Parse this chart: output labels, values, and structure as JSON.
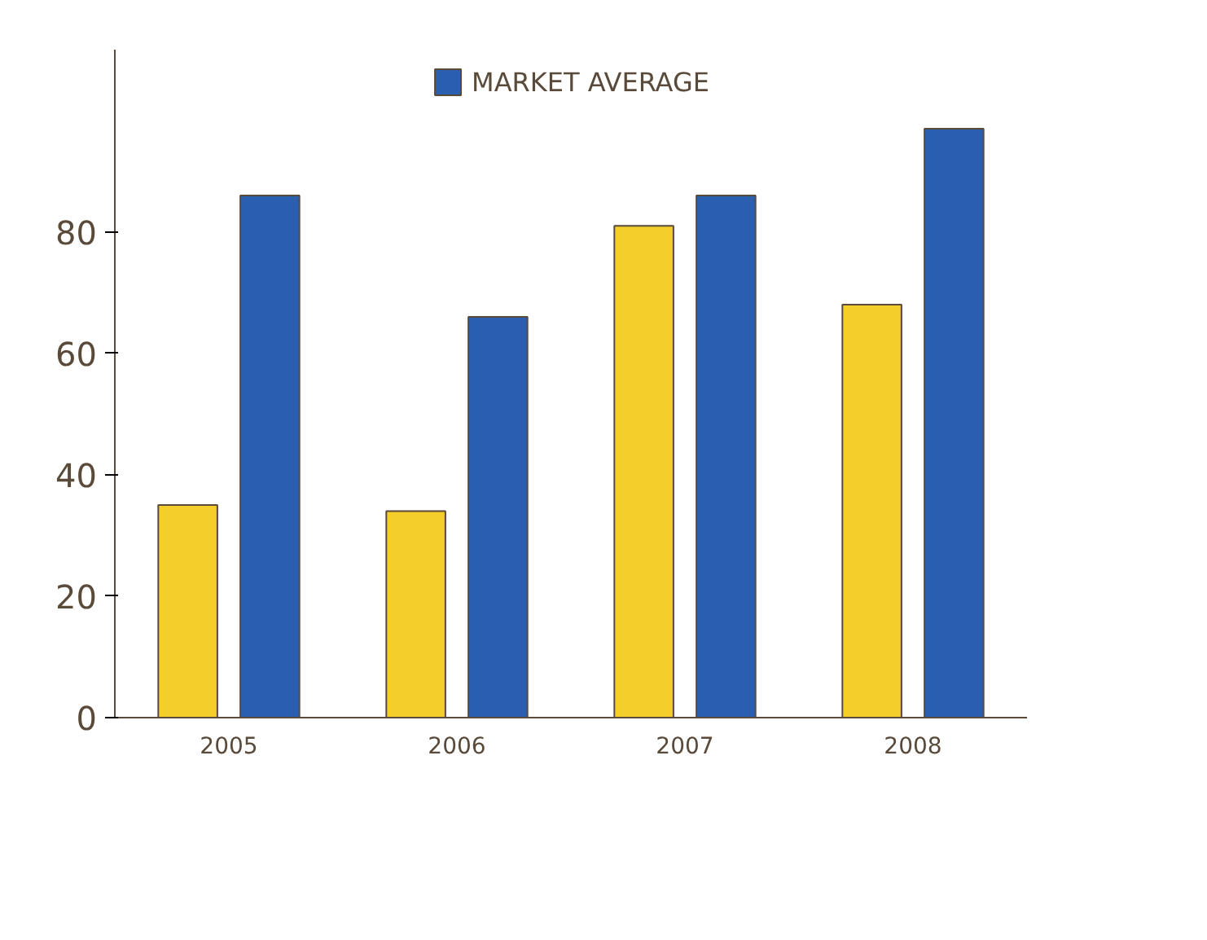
{
  "chart_data": {
    "type": "bar",
    "categories": [
      "2005",
      "2006",
      "2007",
      "2008"
    ],
    "series": [
      {
        "color": "#f4cf2c",
        "values": [
          35,
          34,
          81,
          68
        ]
      },
      {
        "name": "MARKET AVERAGE",
        "color": "#2a5fb0",
        "values": [
          86,
          66,
          86,
          97
        ]
      }
    ],
    "ylim": [
      0,
      110
    ],
    "yticks": [
      0,
      20,
      40,
      60,
      80
    ],
    "grid": false,
    "legend": "top"
  }
}
